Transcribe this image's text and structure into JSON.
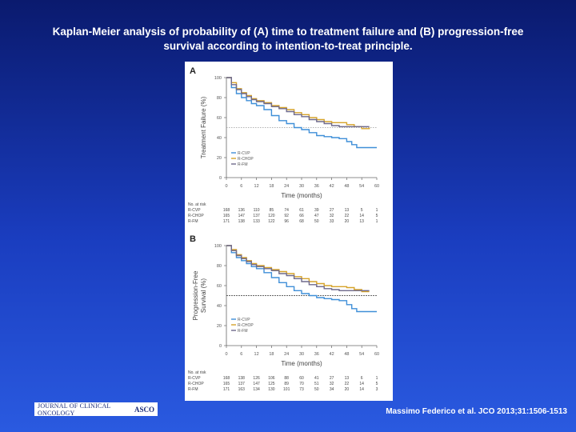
{
  "title_line1": "Kaplan-Meier analysis of probability of (A) time to treatment failure and (B) progression-free",
  "title_line2": "survival according to intention-to-treat principle.",
  "citation": "Massimo Federico et al. JCO 2013;31:1506-1513",
  "logo": {
    "journal": "JOURNAL OF CLINICAL ONCOLOGY",
    "org": "ASCO"
  },
  "colors": {
    "R-CVP": "#3f8fd8",
    "R-CHOP": "#d6a32a",
    "R-FM": "#6f6a8c"
  },
  "chart_data": [
    {
      "type": "line",
      "panel": "A",
      "ylabel": "Treatment Failure (%)",
      "xlabel": "Time (months)",
      "xlim": [
        0,
        60
      ],
      "ylim": [
        0,
        100
      ],
      "xticks": [
        0,
        6,
        12,
        18,
        24,
        30,
        36,
        42,
        48,
        54,
        60
      ],
      "yticks": [
        0,
        20,
        40,
        60,
        80,
        100
      ],
      "reference_line_y": 50,
      "legend": [
        "R-CVP",
        "R-CHOP",
        "R-FM"
      ],
      "legend_position": "bottom-left",
      "series": [
        {
          "name": "R-CVP",
          "x": [
            0,
            2,
            4,
            6,
            8,
            10,
            12,
            15,
            18,
            21,
            24,
            27,
            30,
            33,
            36,
            39,
            42,
            45,
            48,
            50,
            52,
            54,
            57,
            60
          ],
          "y": [
            100,
            90,
            84,
            80,
            77,
            74,
            72,
            68,
            62,
            57,
            54,
            50,
            48,
            45,
            42,
            41,
            40,
            39,
            36,
            33,
            30,
            30,
            30,
            30
          ]
        },
        {
          "name": "R-CHOP",
          "x": [
            0,
            2,
            4,
            6,
            8,
            10,
            12,
            15,
            18,
            21,
            24,
            27,
            30,
            33,
            36,
            39,
            42,
            45,
            48,
            51,
            54,
            57
          ],
          "y": [
            100,
            95,
            89,
            85,
            82,
            79,
            77,
            75,
            72,
            70,
            68,
            65,
            63,
            60,
            58,
            56,
            55,
            55,
            53,
            51,
            49,
            50
          ]
        },
        {
          "name": "R-FM",
          "x": [
            0,
            2,
            4,
            6,
            8,
            10,
            12,
            15,
            18,
            21,
            24,
            27,
            30,
            33,
            36,
            39,
            42,
            45,
            48,
            51,
            54,
            57
          ],
          "y": [
            100,
            93,
            88,
            84,
            81,
            78,
            76,
            74,
            71,
            69,
            66,
            63,
            61,
            58,
            56,
            54,
            52,
            51,
            51,
            51,
            51,
            51
          ]
        }
      ],
      "risk_table": {
        "header": "No. at risk",
        "rows": [
          {
            "name": "R-CVP",
            "values": [
              "168",
              "136",
              "110",
              "85",
              "74",
              "61",
              "39",
              "27",
              "13",
              "5",
              "1"
            ]
          },
          {
            "name": "R-CHOP",
            "values": [
              "165",
              "147",
              "137",
              "120",
              "92",
              "66",
              "47",
              "32",
              "22",
              "14",
              "5"
            ]
          },
          {
            "name": "R-FM",
            "values": [
              "171",
              "138",
              "133",
              "122",
              "96",
              "68",
              "50",
              "33",
              "20",
              "13",
              "1"
            ]
          }
        ]
      }
    },
    {
      "type": "line",
      "panel": "B",
      "ylabel_line1": "Progression-Free",
      "ylabel_line2": "Survival (%)",
      "xlabel": "Time (months)",
      "xlim": [
        0,
        60
      ],
      "ylim": [
        0,
        100
      ],
      "xticks": [
        0,
        6,
        12,
        18,
        24,
        30,
        36,
        42,
        48,
        54,
        60
      ],
      "yticks": [
        0,
        20,
        40,
        60,
        80,
        100
      ],
      "reference_line_y": 50,
      "legend": [
        "R-CVP",
        "R-CHOP",
        "R-FM"
      ],
      "legend_position": "bottom-left",
      "series": [
        {
          "name": "R-CVP",
          "x": [
            0,
            2,
            4,
            6,
            8,
            10,
            12,
            15,
            18,
            21,
            24,
            27,
            30,
            33,
            36,
            39,
            42,
            45,
            48,
            50,
            52,
            54,
            57,
            60
          ],
          "y": [
            100,
            93,
            88,
            85,
            82,
            79,
            77,
            73,
            68,
            63,
            59,
            55,
            52,
            50,
            48,
            47,
            46,
            45,
            41,
            37,
            34,
            34,
            34,
            34
          ]
        },
        {
          "name": "R-CHOP",
          "x": [
            0,
            2,
            4,
            6,
            8,
            10,
            12,
            15,
            18,
            21,
            24,
            27,
            30,
            33,
            36,
            39,
            42,
            45,
            48,
            51,
            54,
            57
          ],
          "y": [
            100,
            96,
            91,
            88,
            85,
            82,
            80,
            78,
            76,
            74,
            72,
            69,
            67,
            64,
            62,
            60,
            59,
            59,
            58,
            56,
            54,
            54
          ]
        },
        {
          "name": "R-FM",
          "x": [
            0,
            2,
            4,
            6,
            8,
            10,
            12,
            15,
            18,
            21,
            24,
            27,
            30,
            33,
            36,
            39,
            42,
            45,
            48,
            51,
            54,
            57
          ],
          "y": [
            100,
            95,
            90,
            87,
            84,
            81,
            79,
            77,
            75,
            72,
            70,
            67,
            64,
            61,
            59,
            57,
            56,
            55,
            55,
            55,
            55,
            55
          ]
        }
      ],
      "risk_table": {
        "header": "No. at risk",
        "rows": [
          {
            "name": "R-CVP",
            "values": [
              "168",
              "138",
              "126",
              "106",
              "88",
              "60",
              "41",
              "27",
              "13",
              "6",
              "1"
            ]
          },
          {
            "name": "R-CHOP",
            "values": [
              "165",
              "137",
              "147",
              "125",
              "89",
              "70",
              "51",
              "32",
              "22",
              "14",
              "5"
            ]
          },
          {
            "name": "R-FM",
            "values": [
              "171",
              "163",
              "134",
              "130",
              "101",
              "73",
              "50",
              "34",
              "20",
              "14",
              "3"
            ]
          }
        ]
      }
    }
  ]
}
